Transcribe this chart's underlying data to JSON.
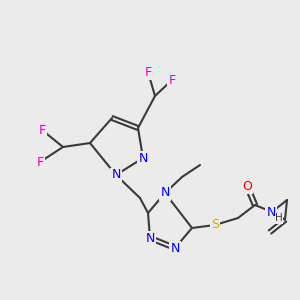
{
  "bg_color": "#ebebeb",
  "atom_colors": {
    "C": "#3a3a3a",
    "N": "#0000ee",
    "S": "#ccaa00",
    "O": "#ee0000",
    "F": "#ee00aa",
    "H": "#3a3a3a"
  },
  "bond_color": "#3a3a3a",
  "bond_width": 1.5,
  "figsize": [
    3.0,
    3.0
  ],
  "dpi": 100
}
